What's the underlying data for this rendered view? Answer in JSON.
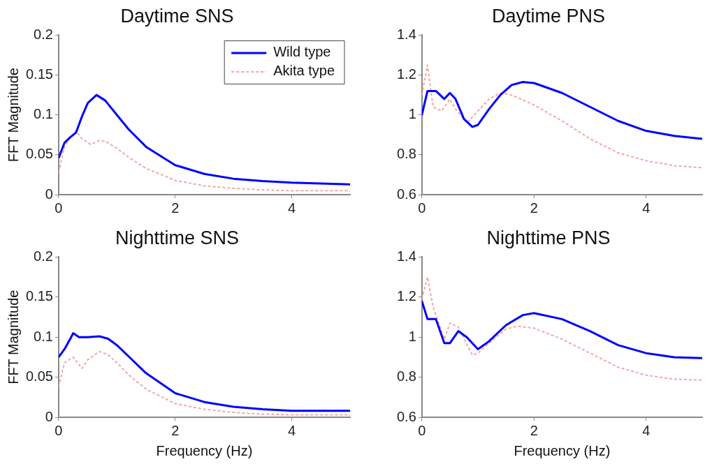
{
  "chart_data": [
    {
      "type": "line",
      "title": "Daytime SNS",
      "ylabel": "FFT Magnitude",
      "xlim": [
        0,
        5
      ],
      "xticks": [
        0,
        2,
        4
      ],
      "ylim": [
        0,
        0.2
      ],
      "yticks": [
        0,
        0.05,
        0.1,
        0.15,
        0.2
      ],
      "grid": false,
      "legend": "top right",
      "series": [
        {
          "name": "Wild type",
          "color": "#0000ff",
          "line_style": "solid",
          "x": [
            0,
            0.1,
            0.2,
            0.3,
            0.4,
            0.5,
            0.65,
            0.8,
            1.0,
            1.2,
            1.5,
            2.0,
            2.5,
            3.0,
            3.5,
            4.0,
            4.5,
            5.0
          ],
          "values": [
            0.046,
            0.065,
            0.072,
            0.078,
            0.098,
            0.115,
            0.125,
            0.118,
            0.1,
            0.082,
            0.06,
            0.037,
            0.026,
            0.02,
            0.017,
            0.015,
            0.014,
            0.013
          ]
        },
        {
          "name": "Akita type",
          "color": "#f4a6a6",
          "line_style": "dashed",
          "x": [
            0,
            0.1,
            0.2,
            0.3,
            0.4,
            0.55,
            0.7,
            0.8,
            1.0,
            1.2,
            1.5,
            2.0,
            2.5,
            3.0,
            3.5,
            4.0,
            5.0
          ],
          "values": [
            0.028,
            0.06,
            0.072,
            0.08,
            0.07,
            0.063,
            0.068,
            0.067,
            0.058,
            0.047,
            0.033,
            0.018,
            0.011,
            0.008,
            0.006,
            0.005,
            0.005
          ]
        }
      ]
    },
    {
      "type": "line",
      "title": "Daytime PNS",
      "xlim": [
        0,
        5
      ],
      "xticks": [
        0,
        2,
        4
      ],
      "ylim": [
        0.6,
        1.4
      ],
      "yticks": [
        0.6,
        0.8,
        1,
        1.2,
        1.4
      ],
      "grid": false,
      "series": [
        {
          "color": "#0000ff",
          "line_style": "solid",
          "x": [
            0,
            0.1,
            0.25,
            0.4,
            0.5,
            0.6,
            0.75,
            0.9,
            1.0,
            1.2,
            1.4,
            1.6,
            1.8,
            2.0,
            2.5,
            3.0,
            3.5,
            4.0,
            4.5,
            5.0
          ],
          "values": [
            1.0,
            1.12,
            1.12,
            1.08,
            1.11,
            1.08,
            0.98,
            0.94,
            0.95,
            1.03,
            1.1,
            1.15,
            1.165,
            1.16,
            1.11,
            1.04,
            0.97,
            0.92,
            0.895,
            0.88
          ]
        },
        {
          "color": "#f4a6a6",
          "line_style": "dashed",
          "x": [
            0,
            0.1,
            0.2,
            0.35,
            0.5,
            0.6,
            0.8,
            1.0,
            1.2,
            1.4,
            1.6,
            2.0,
            2.5,
            3.0,
            3.5,
            4.0,
            4.5,
            5.0
          ],
          "values": [
            1.1,
            1.25,
            1.04,
            1.02,
            1.08,
            1.03,
            0.96,
            1.02,
            1.08,
            1.11,
            1.1,
            1.05,
            0.97,
            0.88,
            0.81,
            0.77,
            0.745,
            0.735
          ]
        }
      ]
    },
    {
      "type": "line",
      "title": "Nighttime SNS",
      "xlabel": "Frequency (Hz)",
      "ylabel": "FFT Magnitude",
      "xlim": [
        0,
        5
      ],
      "xticks": [
        0,
        2,
        4
      ],
      "ylim": [
        0,
        0.2
      ],
      "yticks": [
        0,
        0.05,
        0.1,
        0.15,
        0.2
      ],
      "grid": false,
      "series": [
        {
          "color": "#0000ff",
          "line_style": "solid",
          "x": [
            0,
            0.1,
            0.2,
            0.25,
            0.35,
            0.5,
            0.7,
            0.85,
            1.0,
            1.2,
            1.5,
            2.0,
            2.5,
            3.0,
            3.5,
            4.0,
            5.0
          ],
          "values": [
            0.075,
            0.085,
            0.098,
            0.105,
            0.1,
            0.1,
            0.101,
            0.098,
            0.09,
            0.076,
            0.055,
            0.03,
            0.019,
            0.013,
            0.01,
            0.008,
            0.008
          ]
        },
        {
          "color": "#f4a6a6",
          "line_style": "dashed",
          "x": [
            0,
            0.1,
            0.25,
            0.4,
            0.5,
            0.7,
            0.85,
            1.0,
            1.2,
            1.5,
            2.0,
            2.5,
            3.0,
            3.5,
            4.0,
            5.0
          ],
          "values": [
            0.038,
            0.068,
            0.075,
            0.061,
            0.072,
            0.082,
            0.078,
            0.068,
            0.053,
            0.035,
            0.017,
            0.01,
            0.006,
            0.004,
            0.003,
            0.003
          ]
        }
      ]
    },
    {
      "type": "line",
      "title": "Nighttime PNS",
      "xlabel": "Frequency (Hz)",
      "xlim": [
        0,
        5
      ],
      "xticks": [
        0,
        2,
        4
      ],
      "ylim": [
        0.6,
        1.4
      ],
      "yticks": [
        0.6,
        0.8,
        1,
        1.2,
        1.4
      ],
      "grid": false,
      "series": [
        {
          "color": "#0000ff",
          "line_style": "solid",
          "x": [
            0,
            0.1,
            0.25,
            0.4,
            0.5,
            0.65,
            0.8,
            1.0,
            1.2,
            1.5,
            1.8,
            2.0,
            2.5,
            3.0,
            3.5,
            4.0,
            4.5,
            5.0
          ],
          "values": [
            1.18,
            1.09,
            1.09,
            0.97,
            0.97,
            1.03,
            1.0,
            0.94,
            0.98,
            1.06,
            1.11,
            1.12,
            1.09,
            1.03,
            0.96,
            0.92,
            0.9,
            0.895
          ]
        },
        {
          "color": "#f4a6a6",
          "line_style": "dashed",
          "x": [
            0,
            0.1,
            0.2,
            0.4,
            0.5,
            0.65,
            0.9,
            1.0,
            1.2,
            1.5,
            1.7,
            2.0,
            2.5,
            3.0,
            3.5,
            4.0,
            4.5,
            5.0
          ],
          "values": [
            1.19,
            1.3,
            1.15,
            0.99,
            1.07,
            1.05,
            0.91,
            0.92,
            0.97,
            1.04,
            1.055,
            1.045,
            0.99,
            0.92,
            0.85,
            0.81,
            0.79,
            0.785
          ]
        }
      ]
    }
  ]
}
